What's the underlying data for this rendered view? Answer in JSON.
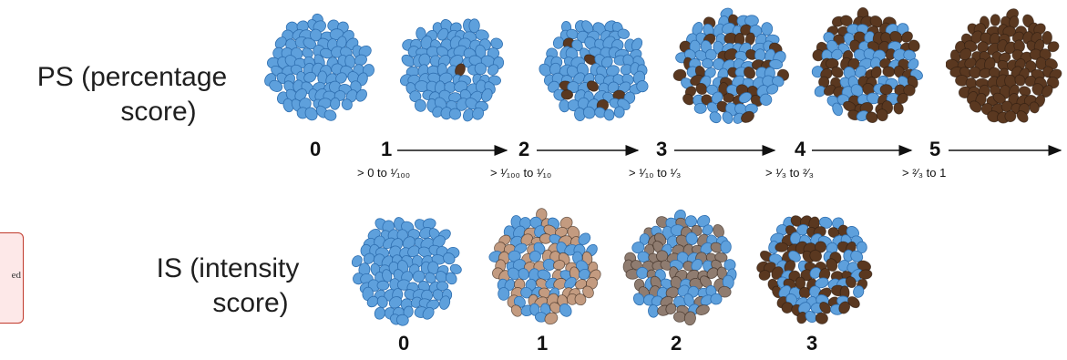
{
  "ps": {
    "label_line1": "PS (percentage",
    "label_line2": "score)",
    "scores": [
      "0",
      "1",
      "2",
      "3",
      "4",
      "5"
    ],
    "ranges": [
      "> 0 to ¹⁄₁₀₀",
      "> ¹⁄₁₀₀ to ¹⁄₁₀",
      "> ¹⁄₁₀ to ¹⁄₃",
      "> ¹⁄₃  to  ²⁄₃",
      "> ²⁄₃  to 1"
    ],
    "stained_fraction": [
      0,
      0.01,
      0.08,
      0.33,
      0.6,
      1.0
    ]
  },
  "is": {
    "label_line1": "IS (intensity",
    "label_line2": "score)",
    "scores": [
      "0",
      "1",
      "2",
      "3"
    ],
    "stain_colors": [
      "#5ea0dc",
      "#c39b80",
      "#8f7c70",
      "#5a3820"
    ]
  },
  "side_note": "ed",
  "colors": {
    "cell_blue": "#5ea0dc",
    "cell_blue_outline": "#2f6fb0",
    "stain_brown": "#5a3820"
  }
}
